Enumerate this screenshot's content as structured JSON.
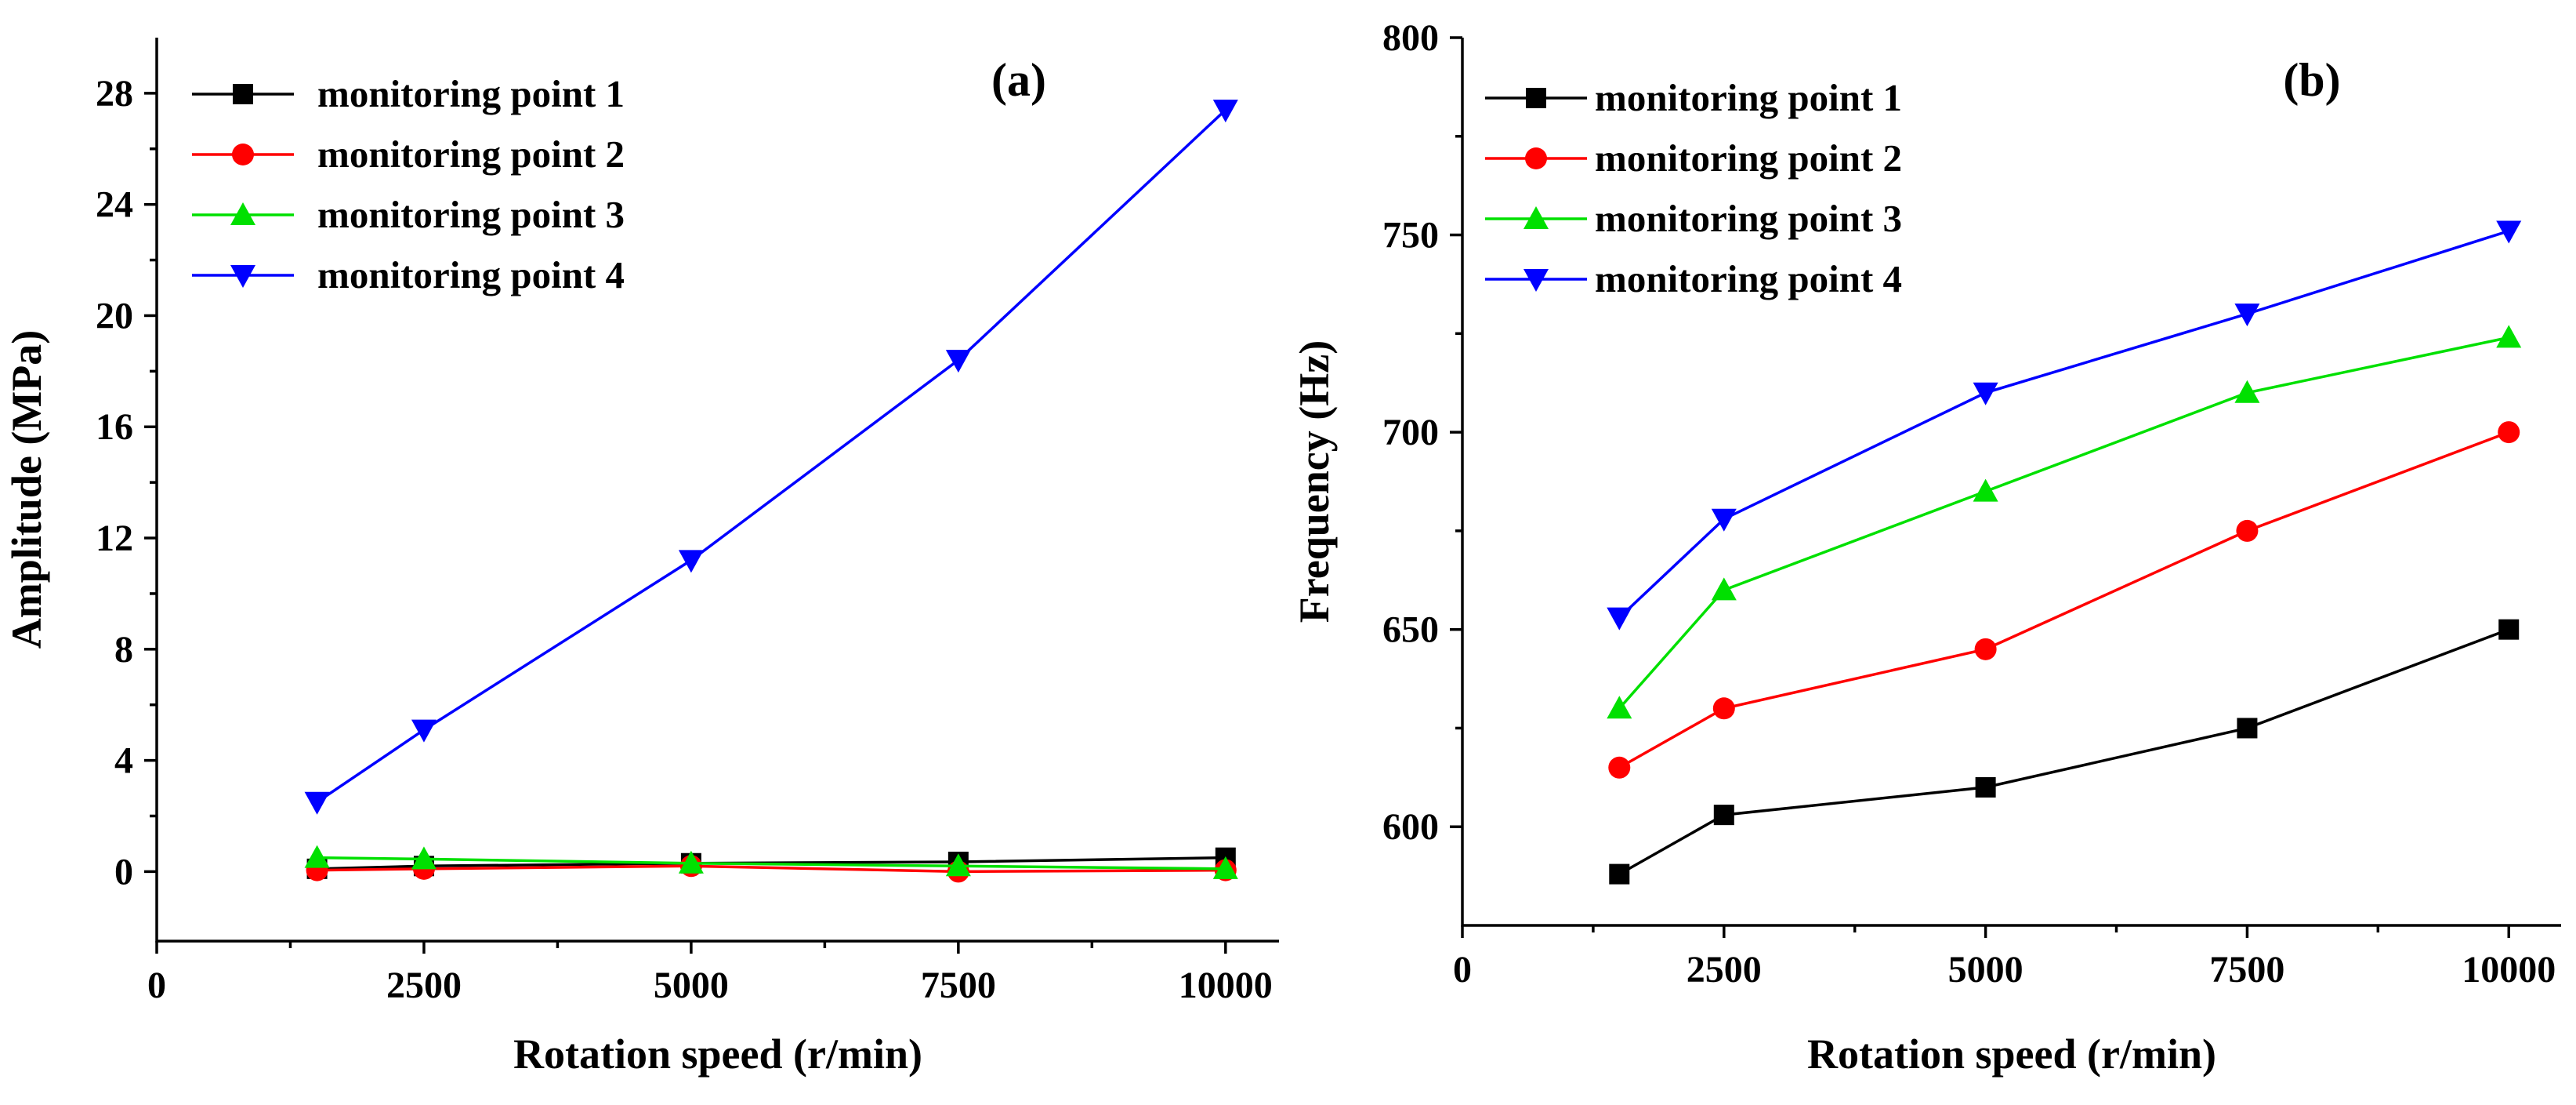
{
  "chart_data": [
    {
      "type": "line",
      "panel_label": "(a)",
      "xlabel": "Rotation speed (r/min)",
      "ylabel": "Amplitude (MPa)",
      "xlim": [
        0,
        10500
      ],
      "ylim": [
        -2.5,
        30
      ],
      "xticks": [
        0,
        2500,
        5000,
        7500,
        10000
      ],
      "yticks": [
        0,
        4,
        8,
        12,
        16,
        20,
        24,
        28
      ],
      "x": [
        1500,
        2500,
        5000,
        7500,
        10000
      ],
      "legend_position": "top-left",
      "series": [
        {
          "name": "monitoring point 1",
          "color": "#000000",
          "marker": "square",
          "values": [
            0.1,
            0.2,
            0.3,
            0.35,
            0.5
          ]
        },
        {
          "name": "monitoring point 2",
          "color": "#ff0000",
          "marker": "circle",
          "values": [
            0.05,
            0.1,
            0.2,
            0.0,
            0.05
          ]
        },
        {
          "name": "monitoring point 3",
          "color": "#00e000",
          "marker": "triangle-up",
          "values": [
            0.5,
            0.45,
            0.3,
            0.2,
            0.1
          ]
        },
        {
          "name": "monitoring point 4",
          "color": "#0000ff",
          "marker": "triangle-down",
          "values": [
            2.5,
            5.1,
            11.2,
            18.4,
            27.4
          ]
        }
      ]
    },
    {
      "type": "line",
      "panel_label": "(b)",
      "xlabel": "Rotation speed (r/min)",
      "ylabel": "Frequency (Hz)",
      "xlim": [
        0,
        10500
      ],
      "ylim": [
        575,
        800
      ],
      "xticks": [
        0,
        2500,
        5000,
        7500,
        10000
      ],
      "yticks": [
        600,
        650,
        700,
        750,
        800
      ],
      "x": [
        1500,
        2500,
        5000,
        7500,
        10000
      ],
      "legend_position": "top-left",
      "series": [
        {
          "name": "monitoring point 1",
          "color": "#000000",
          "marker": "square",
          "values": [
            588,
            603,
            610,
            625,
            650
          ]
        },
        {
          "name": "monitoring point 2",
          "color": "#ff0000",
          "marker": "circle",
          "values": [
            615,
            630,
            645,
            675,
            700
          ]
        },
        {
          "name": "monitoring point 3",
          "color": "#00e000",
          "marker": "triangle-up",
          "values": [
            630,
            660,
            685,
            710,
            724
          ]
        },
        {
          "name": "monitoring point 4",
          "color": "#0000ff",
          "marker": "triangle-down",
          "values": [
            653,
            678,
            710,
            730,
            751
          ]
        }
      ]
    }
  ]
}
